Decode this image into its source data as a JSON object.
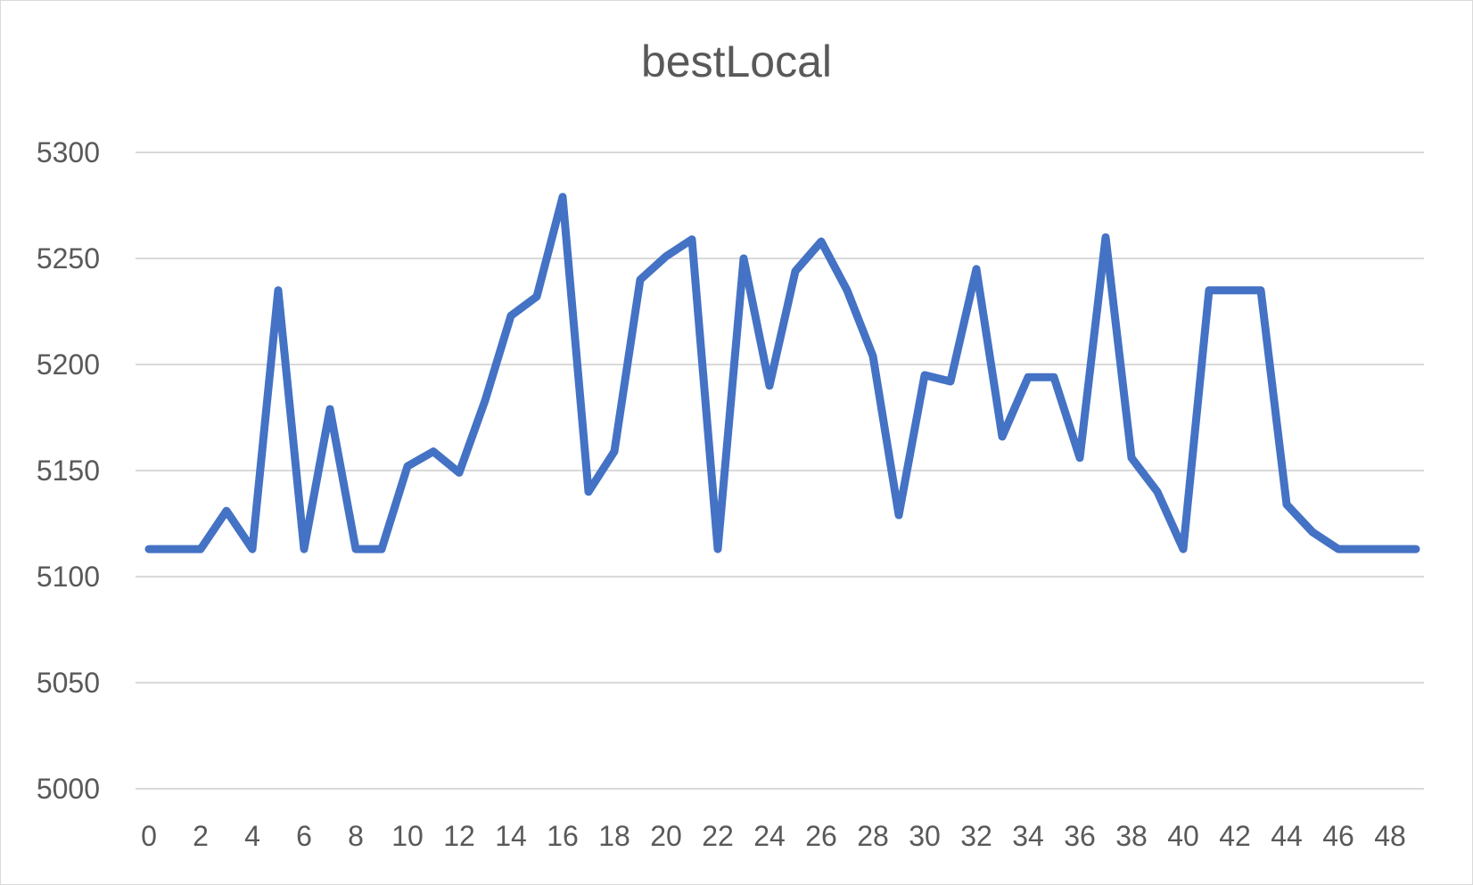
{
  "chart_data": {
    "type": "line",
    "title": "bestLocal",
    "xlabel": "",
    "ylabel": "",
    "ylim": [
      5000,
      5300
    ],
    "yticks": [
      5000,
      5050,
      5100,
      5150,
      5200,
      5250,
      5300
    ],
    "xticks": [
      0,
      2,
      4,
      6,
      8,
      10,
      12,
      14,
      16,
      18,
      20,
      22,
      24,
      26,
      28,
      30,
      32,
      34,
      36,
      38,
      40,
      42,
      44,
      46,
      48
    ],
    "grid": true,
    "legend": "none",
    "series": [
      {
        "color": "#4472c4",
        "x": [
          0,
          1,
          2,
          3,
          4,
          5,
          6,
          7,
          8,
          9,
          10,
          11,
          12,
          13,
          14,
          15,
          16,
          17,
          18,
          19,
          20,
          21,
          22,
          23,
          24,
          25,
          26,
          27,
          28,
          29,
          30,
          31,
          32,
          33,
          34,
          35,
          36,
          37,
          38,
          39,
          40,
          41,
          42,
          43,
          44,
          45,
          46,
          47,
          48,
          49
        ],
        "values": [
          5113,
          5113,
          5113,
          5131,
          5113,
          5235,
          5113,
          5179,
          5113,
          5113,
          5152,
          5159,
          5149,
          5183,
          5223,
          5232,
          5279,
          5140,
          5159,
          5240,
          5251,
          5259,
          5113,
          5250,
          5190,
          5244,
          5258,
          5235,
          5204,
          5129,
          5195,
          5192,
          5245,
          5166,
          5194,
          5194,
          5156,
          5260,
          5156,
          5140,
          5113,
          5235,
          5235,
          5235,
          5134,
          5121,
          5113,
          5113,
          5113,
          5113
        ]
      }
    ]
  }
}
